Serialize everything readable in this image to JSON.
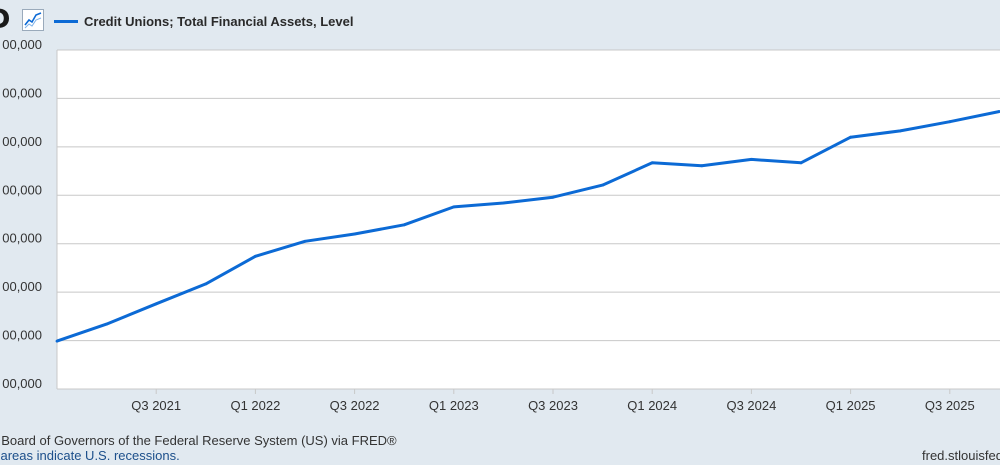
{
  "header": {
    "logo_text": "D",
    "logo_icon": "chart-line-icon",
    "legend_label": "Credit Unions; Total Financial Assets, Level"
  },
  "colors": {
    "series": "#0c6ad5",
    "background": "#e1e9f0",
    "plot": "#ffffff",
    "grid": "#c8c8c8"
  },
  "chart_data": {
    "type": "line",
    "title": "",
    "xlabel": "",
    "ylabel": "",
    "grid": true,
    "legend_position": "top-left",
    "y_tick_labels": [
      "00,000",
      "00,000",
      "00,000",
      "00,000",
      "00,000",
      "00,000",
      "00,000",
      "00,000"
    ],
    "x_tick_labels": [
      "Q3 2021",
      "Q1 2022",
      "Q3 2022",
      "Q1 2023",
      "Q3 2023",
      "Q1 2024",
      "Q3 2024",
      "Q1 2025",
      "Q3 2025"
    ],
    "x": [
      "2021-01-01",
      "2021-04-01",
      "2021-07-01",
      "2021-10-01",
      "2022-01-01",
      "2022-04-01",
      "2022-07-01",
      "2022-10-01",
      "2023-01-01",
      "2023-04-01",
      "2023-07-01",
      "2023-10-01",
      "2024-01-01",
      "2024-04-01",
      "2024-07-01",
      "2024-10-01",
      "2025-01-01",
      "2025-04-01",
      "2025-07-01",
      "2025-10-01"
    ],
    "series": [
      {
        "name": "Credit Unions; Total Financial Assets, Level",
        "values": [
          0.99,
          1.34,
          1.76,
          2.17,
          2.74,
          3.05,
          3.2,
          3.39,
          3.76,
          3.84,
          3.96,
          4.21,
          4.67,
          4.61,
          4.74,
          4.67,
          5.2,
          5.33,
          5.52,
          5.73
        ]
      }
    ],
    "ylim": [
      0,
      7
    ]
  },
  "footer": {
    "source": ": Board of Governors of the Federal Reserve System (US) via FRED®",
    "recession_note": "l areas indicate U.S. recessions.",
    "url": "fred.stlouisfed.org"
  }
}
